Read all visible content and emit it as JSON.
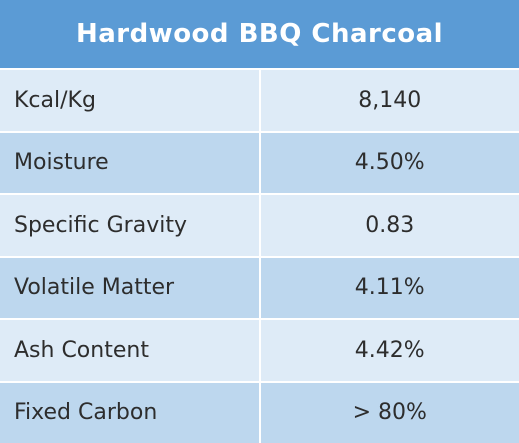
{
  "title": "Hardwood BBQ Charcoal",
  "colors": {
    "header": "#5b9bd5",
    "row_light": "#deebf7",
    "row_dark": "#bdd7ee"
  },
  "rows": [
    {
      "label": "Kcal/Kg",
      "value": "8,140"
    },
    {
      "label": "Moisture",
      "value": "4.50%"
    },
    {
      "label": "Specific Gravity",
      "value": "0.83"
    },
    {
      "label": "Volatile Matter",
      "value": "4.11%"
    },
    {
      "label": "Ash Content",
      "value": "4.42%"
    },
    {
      "label": "Fixed Carbon",
      "value": "> 80%"
    }
  ]
}
